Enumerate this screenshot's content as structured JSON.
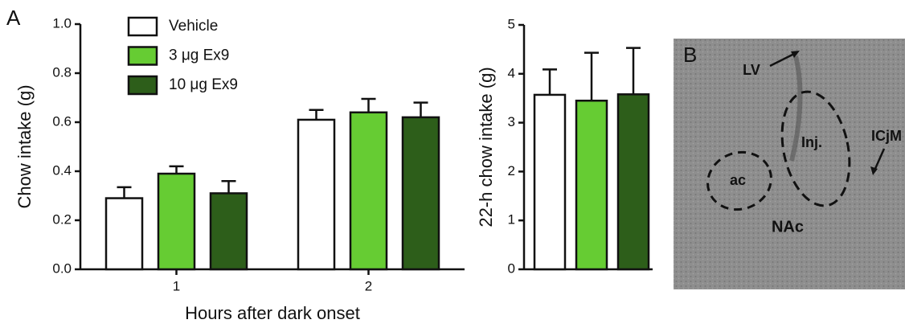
{
  "chart_data": [
    {
      "type": "bar",
      "panel_label": "A",
      "y_label": "Chow intake (g)",
      "x_label": "Hours after dark onset",
      "categories": [
        "1",
        "2"
      ],
      "series": [
        {
          "name": "Vehicle",
          "color": "#ffffff",
          "values": [
            0.29,
            0.61
          ],
          "errors": [
            0.045,
            0.04
          ]
        },
        {
          "name": "3 μg Ex9",
          "color": "#66cc33",
          "values": [
            0.39,
            0.64
          ],
          "errors": [
            0.03,
            0.055
          ]
        },
        {
          "name": "10 μg Ex9",
          "color": "#2d5e1a",
          "values": [
            0.31,
            0.62
          ],
          "errors": [
            0.05,
            0.06
          ]
        }
      ],
      "ylim": [
        0,
        1
      ],
      "yticks": [
        {
          "value": 0,
          "label": "0.0"
        },
        0.2,
        0.4,
        0.6,
        0.8,
        {
          "value": 1,
          "label": "1.0"
        }
      ]
    },
    {
      "type": "bar",
      "y_label": "22-h chow intake (g)",
      "categories": [
        null,
        null,
        null
      ],
      "values": [
        3.57,
        3.45,
        3.58
      ],
      "errors": [
        0.52,
        0.98,
        0.95
      ],
      "colors": [
        "#ffffff",
        "#66cc33",
        "#2d5e1a"
      ],
      "ylim": [
        0,
        5
      ],
      "yticks": [
        0,
        1,
        2,
        3,
        4,
        5
      ]
    }
  ],
  "panel_b": {
    "label": "B",
    "annotations": {
      "lv": "LV",
      "inj": "Inj.",
      "icjm": "ICjM",
      "ac": "ac",
      "nac": "NAc"
    }
  }
}
